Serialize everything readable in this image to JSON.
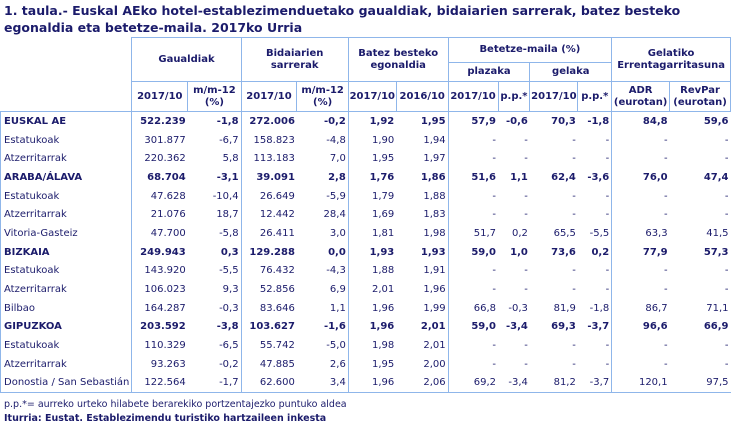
{
  "title": "1. taula.- Euskal AEko hotel-establezimenduetako gaualdiak, bidaiarien sarrerak, batez besteko egonaldia eta betetze-maila. 2017ko Urria",
  "header": {
    "groups": {
      "gaualdiak": "Gaualdiak",
      "sarrerak": "Bidaiarien sarrerak",
      "egonaldia": "Batez besteko egonaldia",
      "betetze": "Betetze-maila (%)",
      "plazaka": "plazaka",
      "gelaka": "gelaka",
      "errentagarritasuna": "Gelatiko Errentagarritasuna"
    },
    "columns": [
      "2017/10",
      "m/m-12 (%)",
      "2017/10",
      "m/m-12 (%)",
      "2017/10",
      "2016/10",
      "2017/10",
      "p.p.*",
      "2017/10",
      "p.p.*",
      "ADR (eurotan)",
      "RevPar (eurotan)"
    ]
  },
  "rows": [
    {
      "label": "EUSKAL AE",
      "bold": true,
      "values": [
        "522.239",
        "-1,8",
        "272.006",
        "-0,2",
        "1,92",
        "1,95",
        "57,9",
        "-0,6",
        "70,3",
        "-1,8",
        "84,8",
        "59,6"
      ]
    },
    {
      "label": "Estatukoak",
      "bold": false,
      "values": [
        "301.877",
        "-6,7",
        "158.823",
        "-4,8",
        "1,90",
        "1,94",
        "-",
        "-",
        "-",
        "-",
        "-",
        "-"
      ]
    },
    {
      "label": "Atzerritarrak",
      "bold": false,
      "values": [
        "220.362",
        "5,8",
        "113.183",
        "7,0",
        "1,95",
        "1,97",
        "-",
        "-",
        "-",
        "-",
        "-",
        "-"
      ]
    },
    {
      "label": "ARABA/ÁLAVA",
      "bold": true,
      "values": [
        "68.704",
        "-3,1",
        "39.091",
        "2,8",
        "1,76",
        "1,86",
        "51,6",
        "1,1",
        "62,4",
        "-3,6",
        "76,0",
        "47,4"
      ]
    },
    {
      "label": "Estatukoak",
      "bold": false,
      "values": [
        "47.628",
        "-10,4",
        "26.649",
        "-5,9",
        "1,79",
        "1,88",
        "-",
        "-",
        "-",
        "-",
        "-",
        "-"
      ]
    },
    {
      "label": "Atzerritarrak",
      "bold": false,
      "values": [
        "21.076",
        "18,7",
        "12.442",
        "28,4",
        "1,69",
        "1,83",
        "-",
        "-",
        "-",
        "-",
        "-",
        "-"
      ]
    },
    {
      "label": "Vitoria-Gasteiz",
      "bold": false,
      "values": [
        "47.700",
        "-5,8",
        "26.411",
        "3,0",
        "1,81",
        "1,98",
        "51,7",
        "0,2",
        "65,5",
        "-5,5",
        "63,3",
        "41,5"
      ]
    },
    {
      "label": "BIZKAIA",
      "bold": true,
      "values": [
        "249.943",
        "0,3",
        "129.288",
        "0,0",
        "1,93",
        "1,93",
        "59,0",
        "1,0",
        "73,6",
        "0,2",
        "77,9",
        "57,3"
      ]
    },
    {
      "label": "Estatukoak",
      "bold": false,
      "values": [
        "143.920",
        "-5,5",
        "76.432",
        "-4,3",
        "1,88",
        "1,91",
        "-",
        "-",
        "-",
        "-",
        "-",
        "-"
      ]
    },
    {
      "label": "Atzerritarrak",
      "bold": false,
      "values": [
        "106.023",
        "9,3",
        "52.856",
        "6,9",
        "2,01",
        "1,96",
        "-",
        "-",
        "-",
        "-",
        "-",
        "-"
      ]
    },
    {
      "label": "Bilbao",
      "bold": false,
      "values": [
        "164.287",
        "-0,3",
        "83.646",
        "1,1",
        "1,96",
        "1,99",
        "66,8",
        "-0,3",
        "81,9",
        "-1,8",
        "86,7",
        "71,1"
      ]
    },
    {
      "label": "GIPUZKOA",
      "bold": true,
      "values": [
        "203.592",
        "-3,8",
        "103.627",
        "-1,6",
        "1,96",
        "2,01",
        "59,0",
        "-3,4",
        "69,3",
        "-3,7",
        "96,6",
        "66,9"
      ]
    },
    {
      "label": "Estatukoak",
      "bold": false,
      "values": [
        "110.329",
        "-6,5",
        "55.742",
        "-5,0",
        "1,98",
        "2,01",
        "-",
        "-",
        "-",
        "-",
        "-",
        "-"
      ]
    },
    {
      "label": "Atzerritarrak",
      "bold": false,
      "values": [
        "93.263",
        "-0,2",
        "47.885",
        "2,6",
        "1,95",
        "2,00",
        "-",
        "-",
        "-",
        "-",
        "-",
        "-"
      ]
    },
    {
      "label": "Donostia / San Sebastián",
      "bold": false,
      "values": [
        "122.564",
        "-1,7",
        "62.600",
        "3,4",
        "1,96",
        "2,06",
        "69,2",
        "-3,4",
        "81,2",
        "-3,7",
        "120,1",
        "97,5"
      ]
    }
  ],
  "footnote": "p.p.*= aurreko urteko hilabete berarekiko portzentajezko puntuko aldea",
  "source": "Iturria: Eustat. Establezimendu turistiko hartzaileen inkesta"
}
